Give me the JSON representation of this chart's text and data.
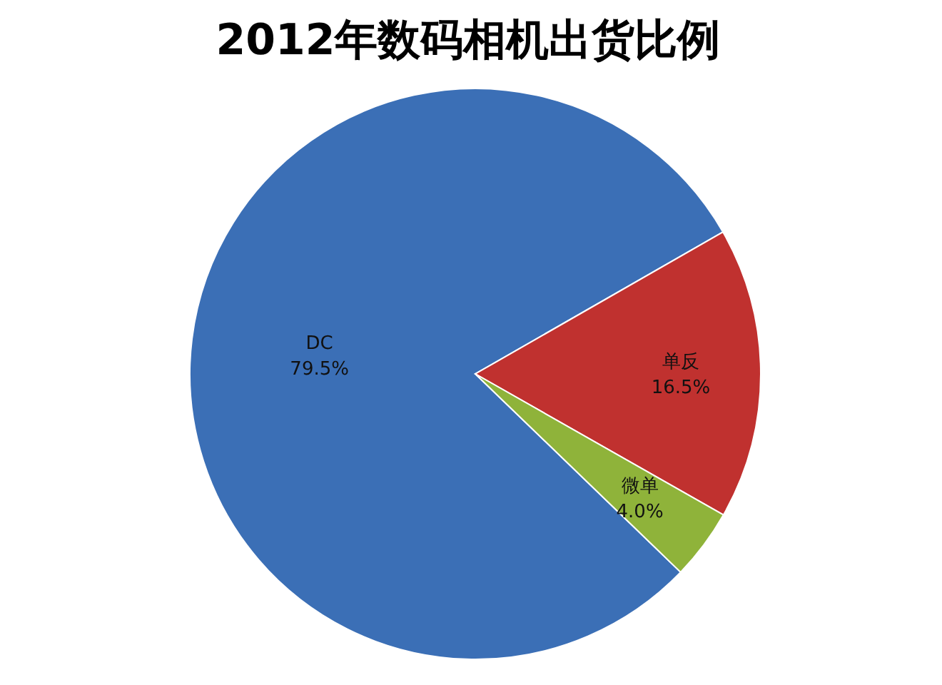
{
  "chart_data": {
    "type": "pie",
    "title": "2012年数码相机出货比例",
    "categories": [
      "DC",
      "单反",
      "微单"
    ],
    "values": [
      79.5,
      16.5,
      4.0
    ],
    "value_labels": [
      "79.5%",
      "16.5%",
      "4.0%"
    ],
    "colors": [
      "#3b6fb6",
      "#c0312f",
      "#8fb33a"
    ]
  }
}
